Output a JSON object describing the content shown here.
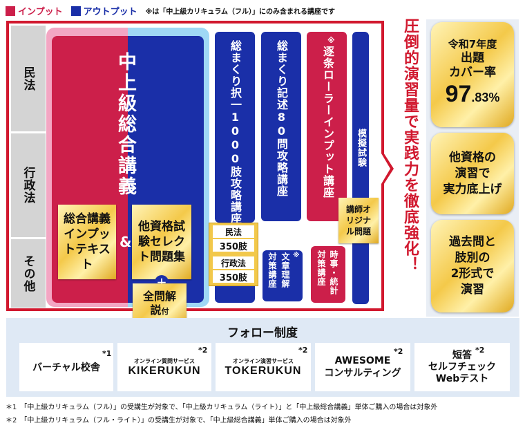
{
  "legend": {
    "input_label": "インプット",
    "output_label": "アウトプット",
    "note": "※は「中上級カリキュラム（フル）」にのみ含まれる講座です",
    "input_color": "#cc1f4a",
    "output_color": "#1a2fa8"
  },
  "rows": [
    "民法",
    "行政法",
    "その他"
  ],
  "main_course": {
    "title": "中上級総合講義",
    "input_text": "総合講義インプットテキスト",
    "amp": "&",
    "output_text": "他資格試験セレクト問題集",
    "plus": "＋",
    "extra": "全問解説",
    "extra_suffix": "付"
  },
  "columns": {
    "c1": "総まくり択一1000肢攻略講座",
    "c2": "総まくり記述80問攻略講座",
    "c3_mark": "※",
    "c3": "逐条ローラーインプット講座",
    "c4": "模擬試験"
  },
  "sub_labels": {
    "minpo": "民法",
    "minpo_count": "350肢",
    "gyosei": "行政法",
    "gyosei_count": "350肢",
    "teacher": "講師オリジナル問題"
  },
  "small_courses": {
    "s1": "対策講座",
    "s2": "文章理解",
    "s2_mark": "※",
    "s3": "時事・統計",
    "s4": "対策講座"
  },
  "center_slogan": "圧倒的演習量で実践力を徹底強化！",
  "cover_box": {
    "year": "令和7年度",
    "line1": "出題",
    "line2": "カバー率",
    "rate_int": "97",
    "rate_dec": ".83%"
  },
  "other_box": {
    "l1": "他資格の",
    "l2": "演習で",
    "l3": "実力底上げ"
  },
  "past_box": {
    "l1": "過去問と",
    "l2": "肢別の",
    "l3": "2形式で",
    "l4": "演習"
  },
  "follow": {
    "title": "フォロー制度",
    "items": [
      {
        "label": "バーチャル校舎",
        "mark": "*1"
      },
      {
        "small": "オンライン質問サービス",
        "label": "KIKERUKUN",
        "mark": "*2"
      },
      {
        "small": "オンライン演習サービス",
        "label": "TOKERUKUN",
        "mark": "*2"
      },
      {
        "label": "AWESOME",
        "label2": "コンサルティング",
        "mark": "*2"
      },
      {
        "label": "短答",
        "label2": "セルフチェック",
        "label3": "Webテスト",
        "mark": "*2"
      }
    ]
  },
  "footnotes": [
    "＊1　「中上級カリキュラム（フル）」の受講生が対象で、「中上級カリキュラム（ライト）」と「中上級総合講義」単体ご購入の場合は対象外",
    "＊2　「中上級カリキュラム（フル・ライト）」の受講生が対象で、「中上級総合講義」単体ご購入の場合は対象外"
  ]
}
